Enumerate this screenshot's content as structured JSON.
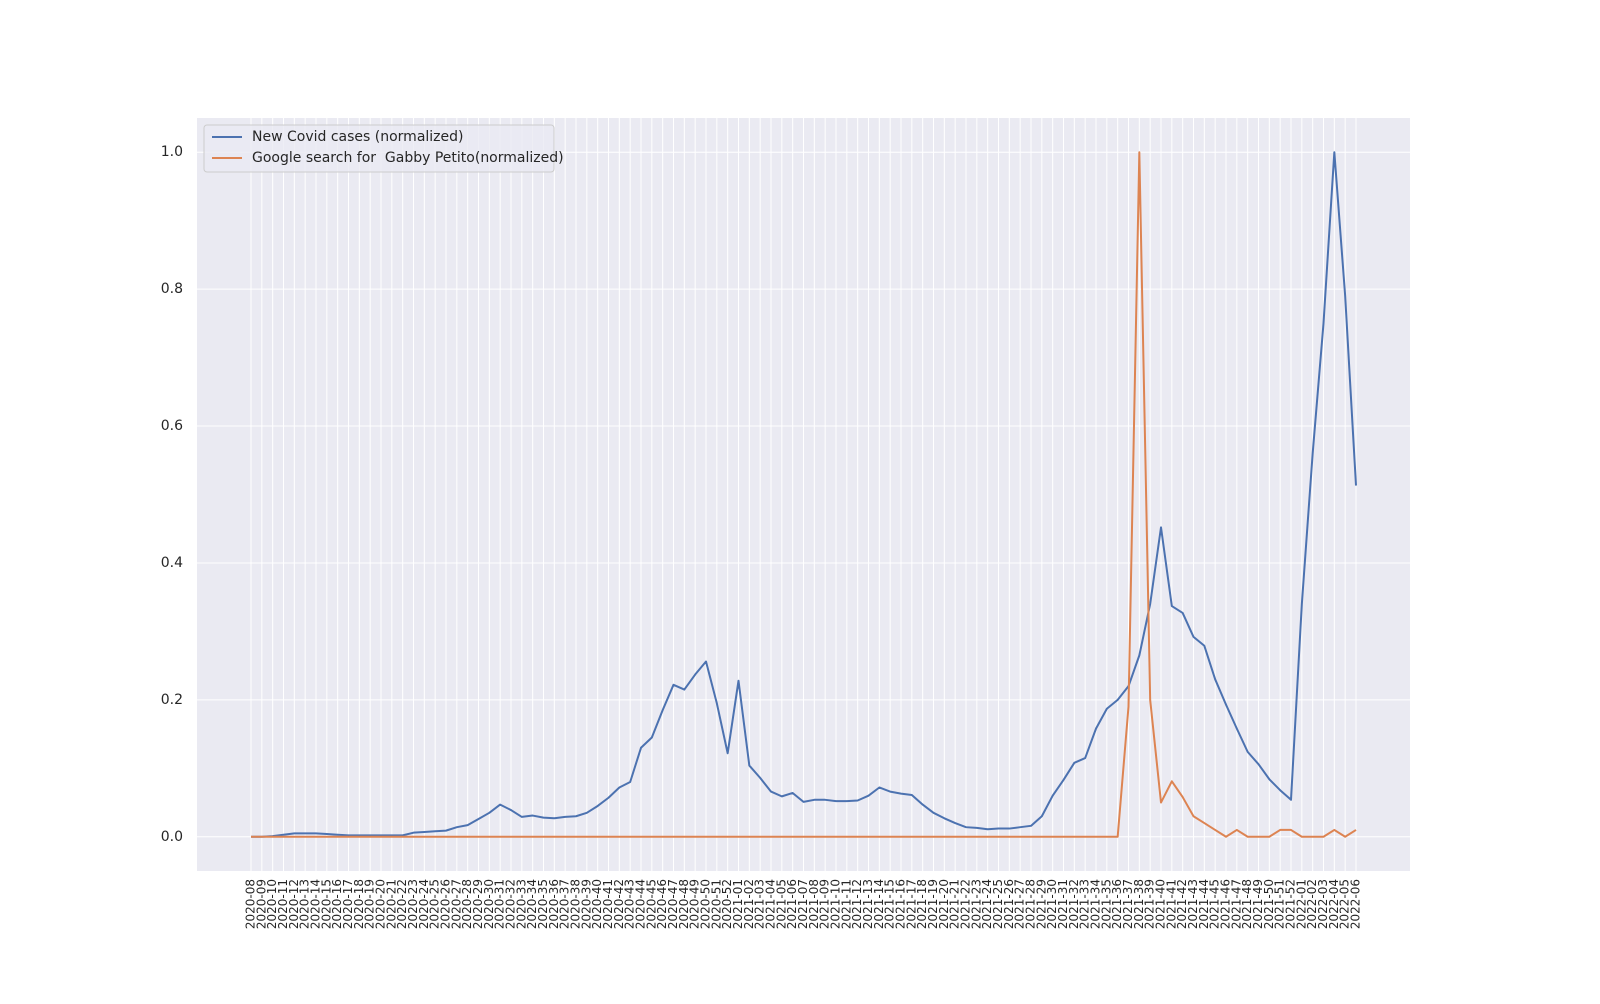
{
  "chart_data": {
    "type": "line",
    "categories": [
      "2020-08",
      "2020-09",
      "2020-10",
      "2020-11",
      "2020-12",
      "2020-13",
      "2020-14",
      "2020-15",
      "2020-16",
      "2020-17",
      "2020-18",
      "2020-19",
      "2020-20",
      "2020-21",
      "2020-22",
      "2020-23",
      "2020-24",
      "2020-25",
      "2020-26",
      "2020-27",
      "2020-28",
      "2020-29",
      "2020-30",
      "2020-31",
      "2020-32",
      "2020-33",
      "2020-34",
      "2020-35",
      "2020-36",
      "2020-37",
      "2020-38",
      "2020-39",
      "2020-40",
      "2020-41",
      "2020-42",
      "2020-43",
      "2020-44",
      "2020-45",
      "2020-46",
      "2020-47",
      "2020-48",
      "2020-49",
      "2020-50",
      "2020-51",
      "2020-52",
      "2021-01",
      "2021-02",
      "2021-03",
      "2021-04",
      "2021-05",
      "2021-06",
      "2021-07",
      "2021-08",
      "2021-09",
      "2021-10",
      "2021-11",
      "2021-12",
      "2021-13",
      "2021-14",
      "2021-15",
      "2021-16",
      "2021-17",
      "2021-18",
      "2021-19",
      "2021-20",
      "2021-21",
      "2021-22",
      "2021-23",
      "2021-24",
      "2021-25",
      "2021-26",
      "2021-27",
      "2021-28",
      "2021-29",
      "2021-30",
      "2021-31",
      "2021-32",
      "2021-33",
      "2021-34",
      "2021-35",
      "2021-36",
      "2021-37",
      "2021-38",
      "2021-39",
      "2021-40",
      "2021-41",
      "2021-42",
      "2021-43",
      "2021-44",
      "2021-45",
      "2021-46",
      "2021-47",
      "2021-48",
      "2021-49",
      "2021-50",
      "2021-51",
      "2021-52",
      "2022-01",
      "2022-02",
      "2022-03",
      "2022-04",
      "2022-05",
      "2022-06"
    ],
    "series": [
      {
        "name": "New Covid cases (normalized)",
        "color": "#4c72b0",
        "values": [
          0,
          0,
          0.001,
          0.003,
          0.005,
          0.005,
          0.005,
          0.004,
          0.003,
          0.002,
          0.002,
          0.002,
          0.002,
          0.002,
          0.002,
          0.006,
          0.007,
          0.008,
          0.009,
          0.014,
          0.017,
          0.026,
          0.035,
          0.047,
          0.039,
          0.029,
          0.031,
          0.028,
          0.027,
          0.029,
          0.03,
          0.035,
          0.045,
          0.057,
          0.072,
          0.08,
          0.13,
          0.145,
          0.185,
          0.222,
          0.215,
          0.237,
          0.256,
          0.195,
          0.122,
          0.228,
          0.104,
          0.086,
          0.066,
          0.059,
          0.064,
          0.051,
          0.054,
          0.054,
          0.052,
          0.052,
          0.053,
          0.06,
          0.072,
          0.066,
          0.063,
          0.061,
          0.047,
          0.035,
          0.027,
          0.02,
          0.014,
          0.013,
          0.011,
          0.012,
          0.012,
          0.014,
          0.016,
          0.03,
          0.06,
          0.083,
          0.108,
          0.115,
          0.158,
          0.187,
          0.2,
          0.22,
          0.265,
          0.34,
          0.452,
          0.337,
          0.327,
          0.292,
          0.279,
          0.23,
          0.193,
          0.158,
          0.124,
          0.106,
          0.084,
          0.068,
          0.054,
          0.34,
          0.56,
          0.75,
          1.0,
          0.79,
          0.513
        ]
      },
      {
        "name": "Google search for  Gabby Petito(normalized)",
        "color": "#dd8452",
        "values": [
          0,
          0,
          0,
          0,
          0,
          0,
          0,
          0,
          0,
          0,
          0,
          0,
          0,
          0,
          0,
          0,
          0,
          0,
          0,
          0,
          0,
          0,
          0,
          0,
          0,
          0,
          0,
          0,
          0,
          0,
          0,
          0,
          0,
          0,
          0,
          0,
          0,
          0,
          0,
          0,
          0,
          0,
          0,
          0,
          0,
          0,
          0,
          0,
          0,
          0,
          0,
          0,
          0,
          0,
          0,
          0,
          0,
          0,
          0,
          0,
          0,
          0,
          0,
          0,
          0,
          0,
          0,
          0,
          0,
          0,
          0,
          0,
          0,
          0,
          0,
          0,
          0,
          0,
          0,
          0,
          0,
          0.19,
          1.0,
          0.2,
          0.05,
          0.081,
          0.058,
          0.03,
          0.02,
          0.01,
          0,
          0.01,
          0,
          0,
          0,
          0.01,
          0.01,
          0,
          0,
          0,
          0.01,
          0,
          0.01
        ]
      }
    ],
    "ylim": [
      -0.05,
      1.05
    ],
    "yticks": [
      {
        "value": 0,
        "label": "0.0"
      },
      0.2,
      0.4,
      0.6,
      0.8,
      {
        "value": 1,
        "label": "1.0"
      }
    ],
    "grid": true,
    "legend": "upper left"
  }
}
